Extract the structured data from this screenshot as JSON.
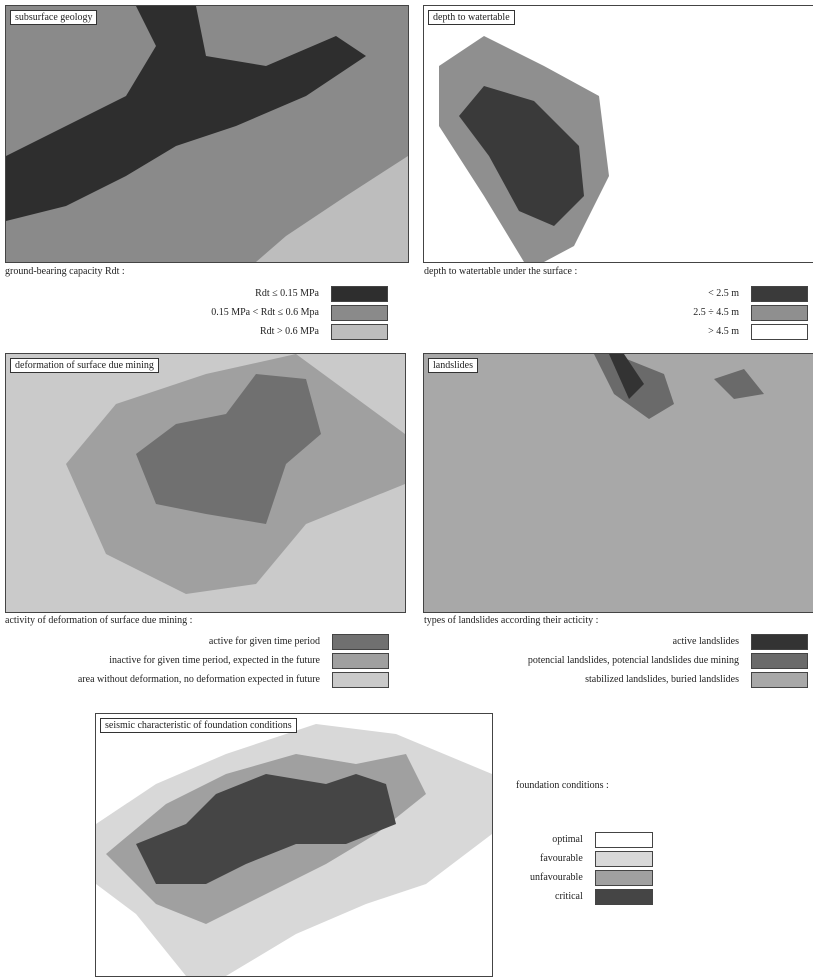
{
  "panels": [
    {
      "title": "subsurface geology",
      "caption": "ground-bearing capacity Rdt :",
      "legend": [
        {
          "label": "Rdt ≤ 0.15 MPa",
          "color": "#2e2e2e"
        },
        {
          "label": "0.15 MPa < Rdt ≤ 0.6 Mpa",
          "color": "#8a8a8a"
        },
        {
          "label": "Rdt > 0.6 MPa",
          "color": "#bdbdbd"
        }
      ]
    },
    {
      "title": "depth to watertable",
      "caption": "depth to watertable under the surface :",
      "legend": [
        {
          "label": "< 2.5 m",
          "color": "#3a3a3a"
        },
        {
          "label": "2.5 ÷ 4.5 m",
          "color": "#8f8f8f"
        },
        {
          "label": "> 4.5 m",
          "color": "#ffffff"
        }
      ]
    },
    {
      "title": "deformation of surface due mining",
      "caption": "activity of deformation of surface due mining :",
      "legend": [
        {
          "label": "active for given time period",
          "color": "#707070"
        },
        {
          "label": "inactive for given time period, expected in the future",
          "color": "#a0a0a0"
        },
        {
          "label": "area without deformation, no deformation expected in future",
          "color": "#cacaca"
        }
      ]
    },
    {
      "title": "landslides",
      "caption": "types of landslides according their acticity :",
      "legend": [
        {
          "label": "active landslides",
          "color": "#333333"
        },
        {
          "label": "potencial landslides, potencial landslides due mining",
          "color": "#6a6a6a"
        },
        {
          "label": "stabilized landslides, buried landslides",
          "color": "#a8a8a8"
        }
      ]
    },
    {
      "title": "seismic characteristic of foundation conditions",
      "caption": "foundation conditions :",
      "legend": [
        {
          "label": "optimal",
          "color": "#ffffff"
        },
        {
          "label": "favourable",
          "color": "#d8d8d8"
        },
        {
          "label": "unfavourable",
          "color": "#a0a0a0"
        },
        {
          "label": "critical",
          "color": "#454545"
        }
      ]
    }
  ]
}
